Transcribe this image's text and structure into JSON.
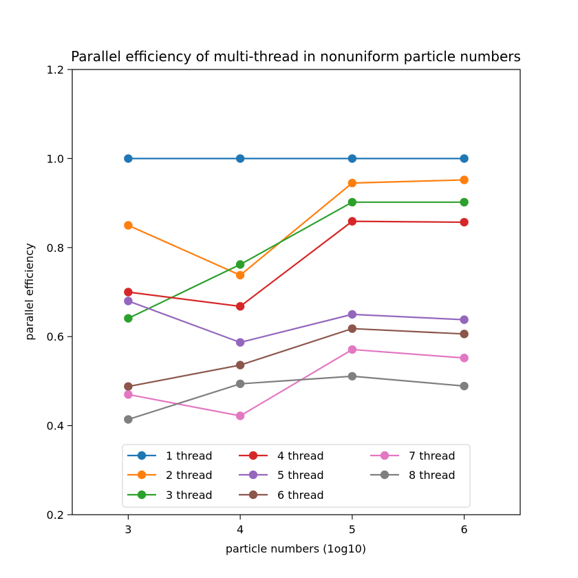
{
  "chart_data": {
    "type": "line",
    "title": "Parallel efficiency of multi-thread in nonuniform particle numbers",
    "xlabel": "particle numbers (1og10)",
    "ylabel": "parallel efficiency",
    "xlim": [
      2.5,
      6.5
    ],
    "ylim": [
      0.2,
      1.2
    ],
    "xticks": [
      3,
      4,
      5,
      6
    ],
    "xtick_labels": [
      "3",
      "4",
      "5",
      "6"
    ],
    "yticks": [
      0.2,
      0.4,
      0.6,
      0.8,
      1.0,
      1.2
    ],
    "ytick_labels": [
      "0.2",
      "0.4",
      "0.6",
      "0.8",
      "1.0",
      "1.2"
    ],
    "grid": false,
    "legend_position": "lower-center",
    "legend_columns": 3,
    "x": [
      3,
      4,
      5,
      6
    ],
    "series": [
      {
        "name": "1 thread",
        "color": "#1f77b4",
        "values": [
          1.0,
          1.0,
          1.0,
          1.0
        ]
      },
      {
        "name": "2 thread",
        "color": "#ff7f0e",
        "values": [
          0.85,
          0.738,
          0.945,
          0.952
        ]
      },
      {
        "name": "3 thread",
        "color": "#2ca02c",
        "values": [
          0.641,
          0.762,
          0.902,
          0.902
        ]
      },
      {
        "name": "4 thread",
        "color": "#d62728",
        "values": [
          0.7,
          0.668,
          0.859,
          0.857
        ]
      },
      {
        "name": "5 thread",
        "color": "#9467bd",
        "values": [
          0.68,
          0.587,
          0.65,
          0.638
        ]
      },
      {
        "name": "6 thread",
        "color": "#8c564b",
        "values": [
          0.488,
          0.536,
          0.618,
          0.606
        ]
      },
      {
        "name": "7 thread",
        "color": "#e377c2",
        "values": [
          0.47,
          0.422,
          0.571,
          0.552
        ]
      },
      {
        "name": "8 thread",
        "color": "#7f7f7f",
        "values": [
          0.414,
          0.494,
          0.511,
          0.489
        ]
      }
    ]
  }
}
